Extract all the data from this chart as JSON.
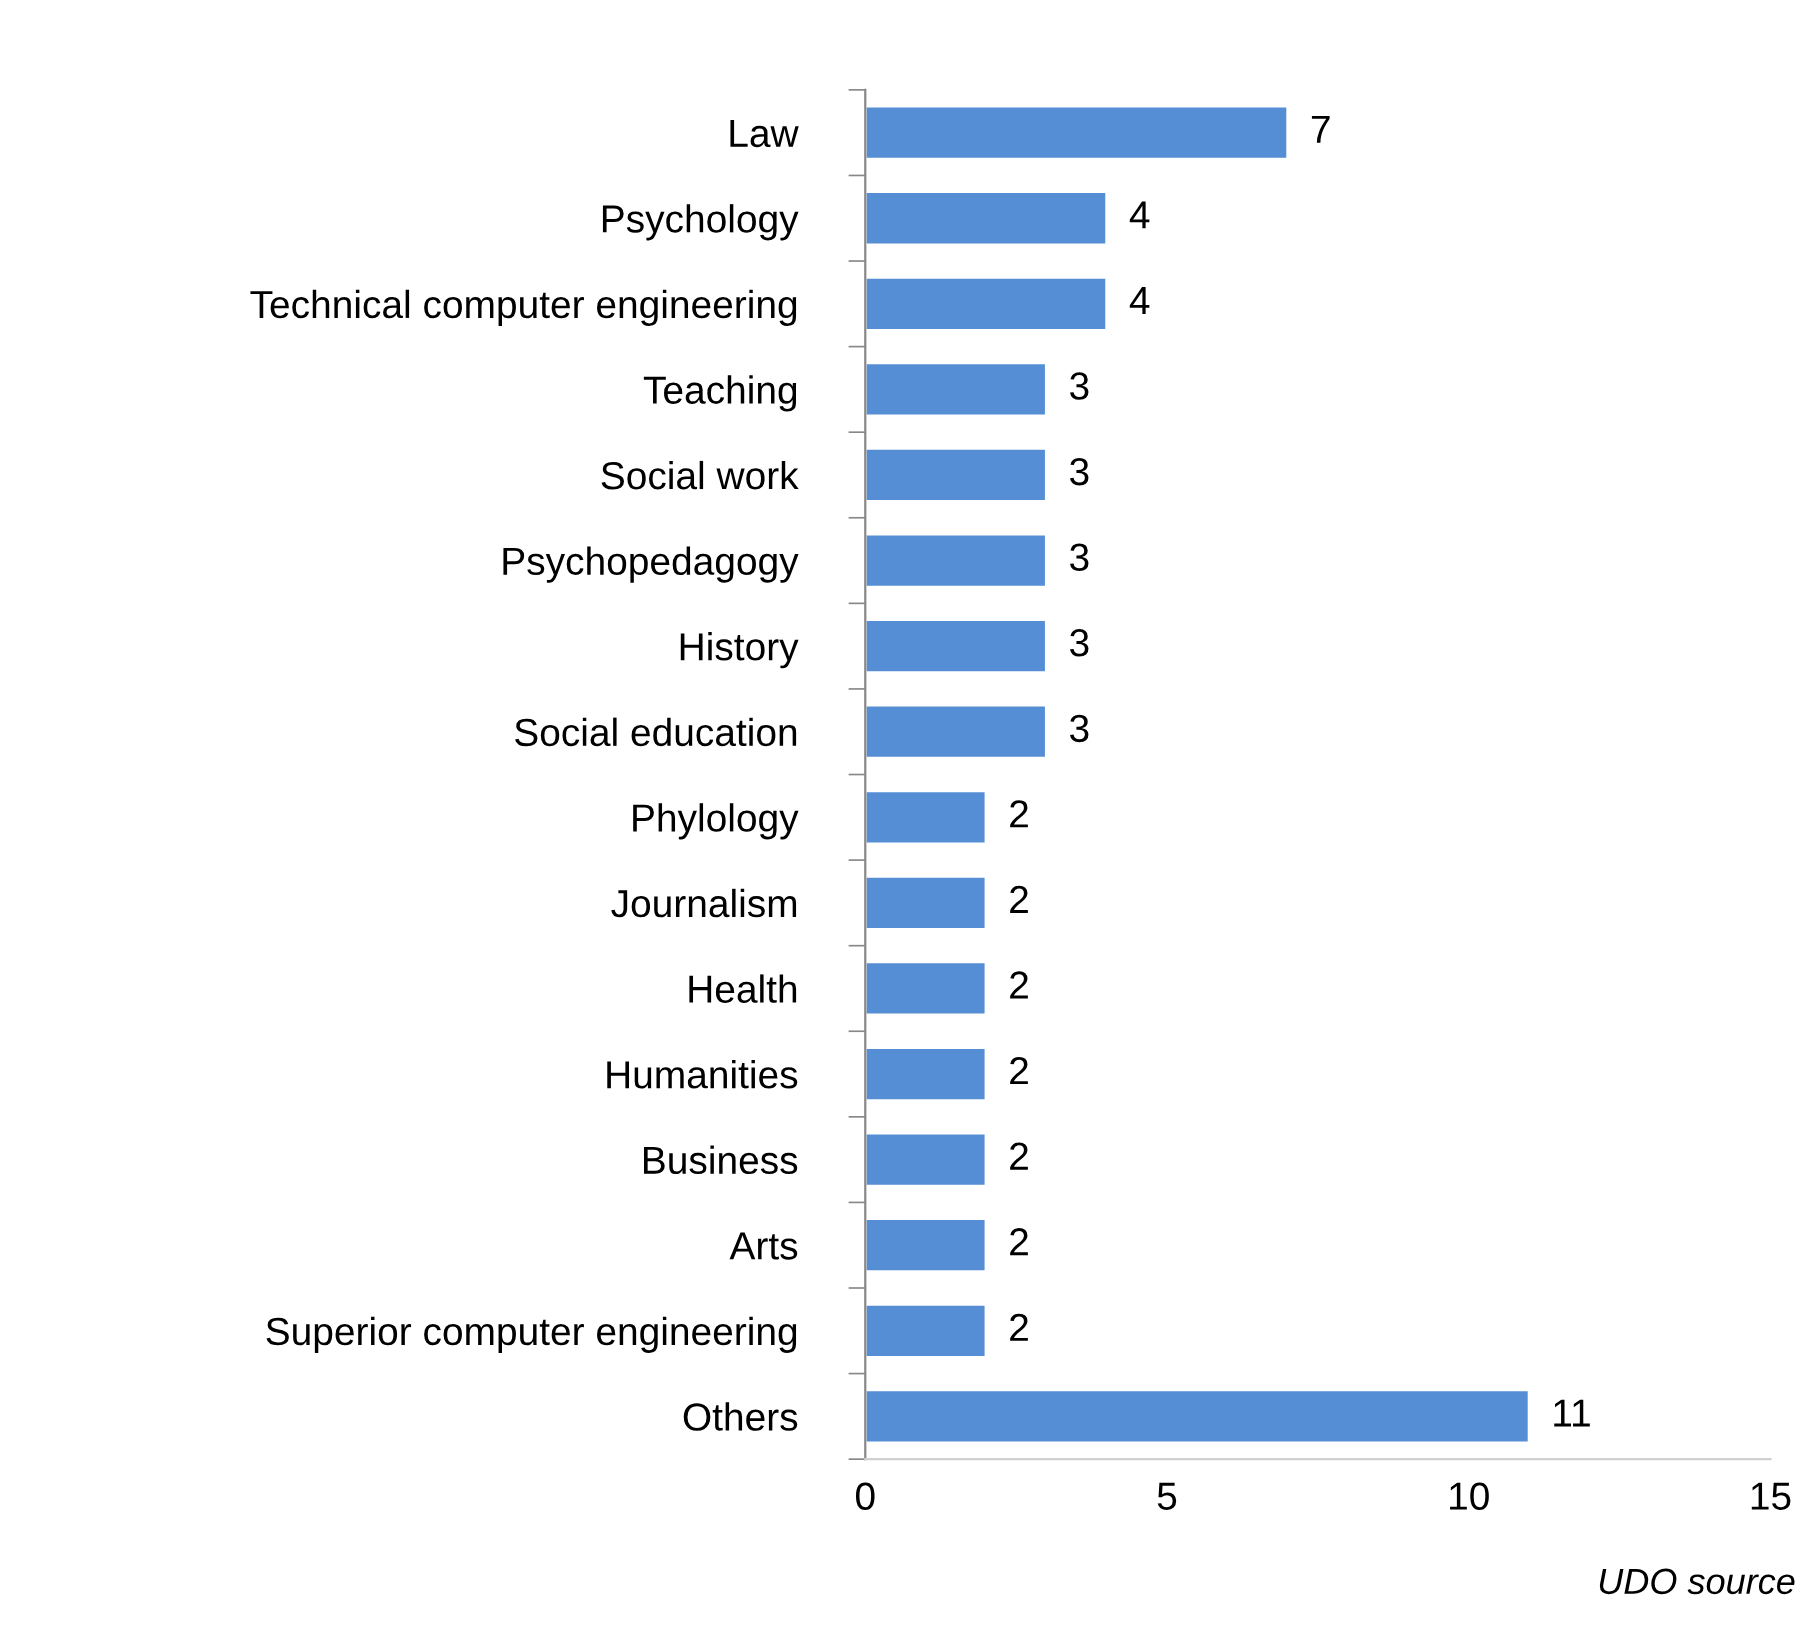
{
  "chart_data": {
    "type": "bar",
    "orientation": "horizontal",
    "categories": [
      "Law",
      "Psychology",
      "Technical computer engineering",
      "Teaching",
      "Social work",
      "Psychopedagogy",
      "History",
      "Social education",
      "Phylology",
      "Journalism",
      "Health",
      "Humanities",
      "Business",
      "Arts",
      "Superior computer engineering",
      "Others"
    ],
    "values": [
      7,
      4,
      4,
      3,
      3,
      3,
      3,
      3,
      2,
      2,
      2,
      2,
      2,
      2,
      2,
      11
    ],
    "color": "#558ed5",
    "xlim": [
      0,
      15
    ],
    "xticks": [
      0,
      5,
      10,
      15
    ],
    "data_labels": true,
    "grid": false,
    "annotations": [
      "UDO source"
    ]
  }
}
